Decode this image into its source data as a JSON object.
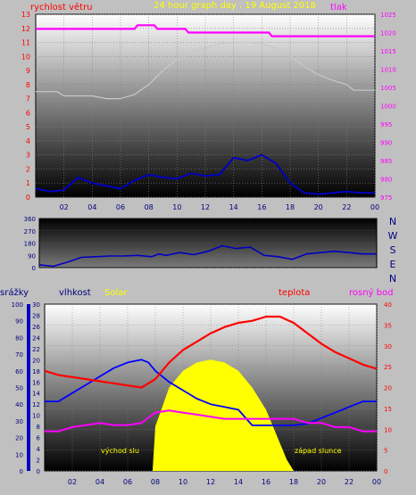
{
  "header": {
    "wind_label": "rychlost větru",
    "title": "24 hour graph day . 19 August 2018",
    "pressure_label": "tlak"
  },
  "direction_letters": [
    "N",
    "W",
    "S",
    "E",
    "N"
  ],
  "bottom_labels": {
    "rain": "srážky",
    "humidity": "vlhkost",
    "solar": "Solar",
    "temperature": "teplota",
    "dew": "rosný bod",
    "sunrise": "východ slu",
    "sunset": "západ slunce"
  },
  "colors": {
    "background": "#c0c0c0",
    "wind": "#ff0000",
    "wind_avg": "#0000c0",
    "pressure": "#ff00ff",
    "temperature_left": "#ff2020",
    "temperature_right": "#ff0000",
    "dew": "#ff00ff",
    "humidity": "#0000ff",
    "solar": "#ffff00",
    "tick_text": "#000080",
    "plot_top": "#ffffff",
    "plot_bottom": "#000000"
  },
  "chart_data": [
    {
      "type": "line",
      "title": "24 hour graph day . 19 August 2018",
      "x_ticks": [
        "02",
        "04",
        "06",
        "08",
        "10",
        "12",
        "14",
        "16",
        "18",
        "20",
        "22",
        "00"
      ],
      "y_left": {
        "label": "rychlost větru",
        "range": [
          0,
          13
        ],
        "ticks": [
          "0",
          "1",
          "2",
          "3",
          "4",
          "5",
          "6",
          "7",
          "8",
          "9",
          "10",
          "11",
          "12",
          "13"
        ]
      },
      "y_right": {
        "label": "tlak",
        "range": [
          975,
          1025
        ],
        "ticks": [
          "975",
          "980",
          "985",
          "990",
          "995",
          "1000",
          "1005",
          "1010",
          "1015",
          "1020",
          "1025"
        ]
      },
      "series": [
        {
          "name": "rychlost větru",
          "axis": "left",
          "x": [
            0,
            1,
            2,
            3,
            4,
            5,
            6,
            7,
            8,
            9,
            10,
            11,
            12,
            13,
            14,
            15,
            16,
            17,
            18,
            19,
            20,
            21,
            22,
            23,
            24
          ],
          "values": [
            0.6,
            0.4,
            0.5,
            1.4,
            1.0,
            0.8,
            0.6,
            1.2,
            1.6,
            1.4,
            1.3,
            1.7,
            1.5,
            1.6,
            2.8,
            2.6,
            3.0,
            2.4,
            1.0,
            0.3,
            0.2,
            0.3,
            0.4,
            0.3,
            0.3
          ]
        },
        {
          "name": "tlak",
          "axis": "right",
          "x": [
            0,
            7,
            7.2,
            8.4,
            8.6,
            10.6,
            10.8,
            16.5,
            16.7,
            24
          ],
          "values": [
            1021,
            1021,
            1022,
            1022,
            1021,
            1021,
            1020,
            1020,
            1019,
            1019
          ]
        },
        {
          "name": "",
          "axis": "left",
          "x": [
            0,
            1,
            1.5,
            2,
            3,
            4,
            5,
            6,
            7,
            8,
            9,
            10,
            11,
            12,
            13,
            14,
            15,
            16,
            17,
            18,
            19,
            20,
            21,
            22,
            22.5,
            23,
            24
          ],
          "values": [
            7.5,
            7.5,
            7.5,
            7.2,
            7.2,
            7.2,
            7.0,
            7.0,
            7.3,
            8.0,
            9.0,
            9.8,
            10.3,
            10.6,
            10.9,
            11.0,
            11.0,
            10.9,
            10.6,
            10.0,
            9.3,
            8.7,
            8.3,
            8.0,
            7.6,
            7.6,
            7.6
          ]
        }
      ]
    },
    {
      "type": "line",
      "y_ticks": [
        "0",
        "90",
        "180",
        "270",
        "360"
      ],
      "y_range": [
        0,
        360
      ],
      "series": [
        {
          "name": "",
          "x": [
            0,
            1,
            2,
            3,
            4,
            5,
            6,
            7,
            8,
            8.5,
            9,
            10,
            11,
            12,
            13,
            14,
            15,
            16,
            17,
            18,
            19,
            20,
            21,
            22,
            23,
            24
          ],
          "values": [
            20,
            10,
            40,
            75,
            80,
            85,
            85,
            90,
            80,
            100,
            90,
            110,
            95,
            120,
            160,
            140,
            150,
            90,
            80,
            60,
            100,
            110,
            120,
            110,
            100,
            100
          ]
        }
      ]
    },
    {
      "type": "line",
      "x_ticks": [
        "02",
        "04",
        "06",
        "08",
        "10",
        "12",
        "14",
        "16",
        "18",
        "20",
        "22",
        "00"
      ],
      "axis_srazky": {
        "label": "srážky",
        "range": [
          0,
          100
        ],
        "ticks": [
          "0",
          "10",
          "20",
          "30",
          "40",
          "50",
          "60",
          "70",
          "80",
          "90",
          "100"
        ]
      },
      "axis_vlhkost": {
        "label": "vlhkost",
        "range": [
          0,
          30
        ],
        "ticks": [
          "0",
          "2",
          "4",
          "6",
          "8",
          "10",
          "12",
          "14",
          "16",
          "18",
          "20",
          "22",
          "24",
          "26",
          "28",
          "30"
        ]
      },
      "axis_teplota": {
        "label": "teplota",
        "range": [
          0,
          40
        ],
        "ticks": [
          "0",
          "5",
          "10",
          "15",
          "20",
          "25",
          "30",
          "35",
          "40"
        ]
      },
      "series": [
        {
          "name": "teplota",
          "x": [
            0,
            1,
            2,
            3,
            4,
            5,
            6,
            7,
            8,
            9,
            10,
            11,
            12,
            13,
            14,
            15,
            16,
            17,
            18,
            19,
            20,
            21,
            22,
            23,
            24
          ],
          "values": [
            24,
            23,
            22.5,
            22,
            21.5,
            21,
            20.5,
            20,
            22,
            26,
            29,
            31,
            33,
            34.5,
            35.5,
            36,
            37,
            37,
            35.5,
            33,
            30.5,
            28.5,
            27,
            25.5,
            24.5
          ]
        },
        {
          "name": "rosný bod",
          "x": [
            0,
            1,
            2,
            3,
            4,
            5,
            6,
            7,
            8,
            9,
            10,
            11,
            12,
            13,
            14,
            15,
            16,
            17,
            18,
            19,
            20,
            21,
            22,
            23,
            24
          ],
          "values": [
            9.5,
            9.5,
            10.5,
            11,
            11.5,
            11,
            11,
            11.5,
            14,
            14.5,
            14,
            13.5,
            13,
            12.5,
            12.5,
            12.5,
            12.5,
            12.5,
            12.5,
            11.5,
            11.5,
            10.5,
            10.5,
            9.5,
            9.5
          ]
        },
        {
          "name": "vlhkost",
          "x": [
            0,
            1,
            2,
            3,
            4,
            5,
            6,
            7,
            7.5,
            8,
            9,
            10,
            11,
            12,
            13,
            14,
            15,
            16,
            17,
            18,
            19,
            20,
            21,
            22,
            23,
            24
          ],
          "values": [
            12.5,
            12.5,
            14,
            15.5,
            17,
            18.5,
            19.5,
            20,
            19.5,
            18,
            16,
            14.5,
            13,
            12,
            11.5,
            11,
            8.2,
            8.2,
            8.2,
            8.2,
            8.5,
            9.5,
            10.5,
            11.5,
            12.5,
            12.5
          ]
        },
        {
          "name": "Solar",
          "x": [
            7.8,
            8,
            9,
            10,
            11,
            12,
            13,
            14,
            15,
            16,
            17,
            17.5,
            18
          ],
          "values": [
            0,
            8,
            15,
            18,
            19.5,
            20,
            19.5,
            18,
            15,
            11,
            5,
            2,
            0
          ]
        }
      ]
    }
  ]
}
